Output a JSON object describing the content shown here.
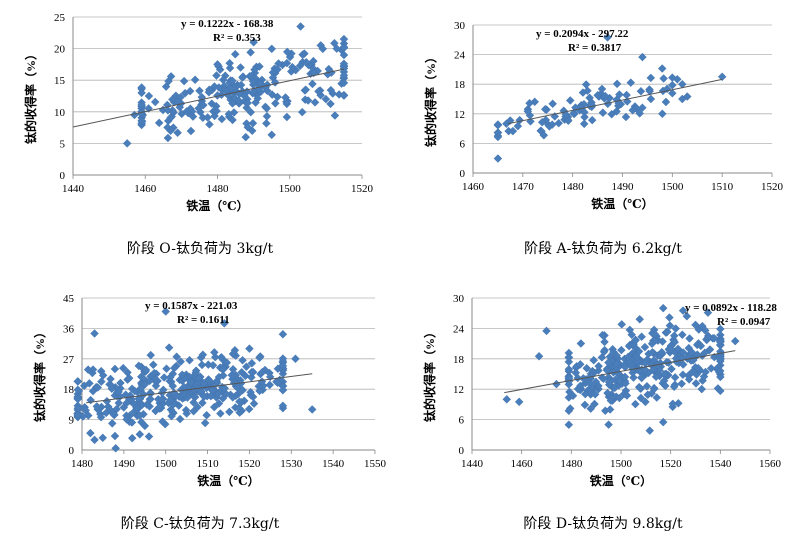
{
  "chart_data": [
    {
      "type": "scatter",
      "title": "",
      "caption": "阶段 O-钛负荷为 3kg/t",
      "xlabel": "铁温（℃）",
      "ylabel": "钛的收得率（%）",
      "xlim": [
        1440,
        1520
      ],
      "ylim": [
        0,
        25
      ],
      "xticks": [
        1440,
        1460,
        1480,
        1500,
        1520
      ],
      "yticks": [
        0,
        5,
        10,
        15,
        20,
        25
      ],
      "grid": "horizontal",
      "equation": "y = 0.1222x - 168.38",
      "r2": "R² = 0.353",
      "trendline": {
        "slope": 0.1222,
        "intercept": -168.38,
        "x_from": 1440,
        "x_to": 1515
      },
      "cluster": {
        "x_min": 1462,
        "x_max": 1512,
        "spread": 2.6,
        "count": 230
      },
      "points": [
        [
          1455,
          5
        ],
        [
          1457,
          9.5
        ],
        [
          1459,
          13
        ],
        [
          1461,
          12.5
        ],
        [
          1503,
          23.5
        ],
        [
          1490,
          21
        ],
        [
          1515,
          21.5
        ],
        [
          1513,
          20
        ],
        [
          1510,
          12
        ],
        [
          1507,
          11.5
        ],
        [
          1467,
          7
        ],
        [
          1480,
          17.5
        ]
      ]
    },
    {
      "type": "scatter",
      "title": "",
      "caption": "阶段 A-钛负荷为 6.2kg/t",
      "xlabel": "铁温（℃）",
      "ylabel": "钛的收得率（%）",
      "xlim": [
        1460,
        1520
      ],
      "ylim": [
        0,
        30
      ],
      "xticks": [
        1460,
        1470,
        1480,
        1490,
        1500,
        1510,
        1520
      ],
      "yticks": [
        0,
        6,
        12,
        18,
        24,
        30
      ],
      "grid": "horizontal",
      "equation": "y = 0.2094x - 297.22",
      "r2": "R² = 0.3817",
      "trendline": {
        "slope": 0.2094,
        "intercept": -297.22,
        "x_from": 1467,
        "x_to": 1510
      },
      "cluster": {
        "x_min": 1468,
        "x_max": 1497,
        "spread": 2.2,
        "count": 95
      },
      "points": [
        [
          1487,
          27.5
        ],
        [
          1494,
          23.5
        ],
        [
          1510,
          19.5
        ],
        [
          1501,
          19
        ],
        [
          1502,
          18
        ],
        [
          1502,
          15
        ],
        [
          1503,
          15.5
        ],
        [
          1498,
          12
        ],
        [
          1468,
          8.5
        ],
        [
          1469,
          9.5
        ],
        [
          1471,
          12.5
        ]
      ]
    },
    {
      "type": "scatter",
      "title": "",
      "caption": "阶段 C-钛负荷为 7.3kg/t",
      "xlabel": "铁温（℃）",
      "ylabel": "钛的收得率（%）",
      "xlim": [
        1480,
        1550
      ],
      "ylim": [
        0,
        45
      ],
      "xticks": [
        1480,
        1490,
        1500,
        1510,
        1520,
        1530,
        1540,
        1550
      ],
      "yticks": [
        0,
        9,
        18,
        27,
        36,
        45
      ],
      "grid": "horizontal",
      "equation": "y = 0.1587x - 221.03",
      "r2": "R² = 0.1611",
      "trendline": {
        "slope": 0.1587,
        "intercept": -221.03,
        "x_from": 1481,
        "x_to": 1535
      },
      "cluster": {
        "x_min": 1482,
        "x_max": 1525,
        "spread": 5,
        "count": 360
      },
      "points": [
        [
          1483,
          34.5
        ],
        [
          1482,
          5
        ],
        [
          1483,
          3
        ],
        [
          1496,
          4
        ],
        [
          1500,
          41
        ],
        [
          1514,
          37.5
        ],
        [
          1535,
          12
        ],
        [
          1531,
          27
        ],
        [
          1520,
          30
        ],
        [
          1492,
          3.5
        ]
      ]
    },
    {
      "type": "scatter",
      "title": "",
      "caption": "阶段 D-钛负荷为 9.8kg/t",
      "xlabel": "铁温（℃）",
      "ylabel": "钛的收得率（%）",
      "xlim": [
        1440,
        1560
      ],
      "ylim": [
        0,
        30
      ],
      "xticks": [
        1440,
        1460,
        1480,
        1500,
        1520,
        1540,
        1560
      ],
      "yticks": [
        0,
        6,
        12,
        18,
        24,
        30
      ],
      "grid": "horizontal",
      "equation": "y = 0.0892x - 118.28",
      "r2": "R² = 0.0947",
      "trendline": {
        "slope": 0.0892,
        "intercept": -118.28,
        "x_from": 1453,
        "x_to": 1546
      },
      "cluster": {
        "x_min": 1482,
        "x_max": 1537,
        "spread": 3.8,
        "count": 330
      },
      "points": [
        [
          1454,
          10
        ],
        [
          1459,
          9.5
        ],
        [
          1470,
          23.5
        ],
        [
          1467,
          18.5
        ],
        [
          1546,
          21.5
        ],
        [
          1517,
          28
        ],
        [
          1525,
          27.5
        ],
        [
          1495,
          5
        ],
        [
          1517,
          5.5
        ],
        [
          1474,
          13
        ]
      ]
    }
  ]
}
